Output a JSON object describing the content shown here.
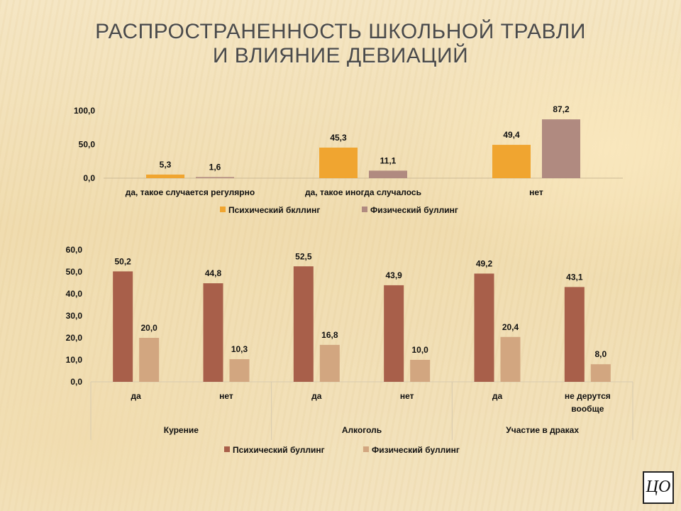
{
  "slide": {
    "title_line1": "Распространенность школьной травли",
    "title_line2": "и влияние девиаций",
    "logo_text": "ЦО"
  },
  "colors": {
    "psych_top": "#f0a530",
    "phys_top": "#b08a80",
    "psych_bottom": "#a85f4a",
    "phys_bottom": "#d2a680"
  },
  "chart_data": [
    {
      "type": "bar",
      "categories": [
        "да, такое случается регулярно",
        "да, такое иногда случалось",
        "нет"
      ],
      "series": [
        {
          "name": "Психический бкллинг",
          "values": [
            5.3,
            45.3,
            49.4
          ],
          "labels": [
            "5,3",
            "45,3",
            "49,4"
          ]
        },
        {
          "name": "Физический буллинг",
          "values": [
            1.6,
            11.1,
            87.2
          ],
          "labels": [
            "1,6",
            "11,1",
            "87,2"
          ]
        }
      ],
      "ylim": [
        0,
        100
      ],
      "yticks": [
        0,
        50,
        100
      ],
      "ytick_labels": [
        "0,0",
        "50,0",
        "100,0"
      ],
      "grid": false,
      "legend": "bottom"
    },
    {
      "type": "bar",
      "categories": [
        "да",
        "нет",
        "да",
        "нет",
        "да",
        "не дерутся вообще"
      ],
      "groups": [
        {
          "label": "Курение",
          "span": 2
        },
        {
          "label": "Алкоголь",
          "span": 2
        },
        {
          "label": "Участие в драках",
          "span": 2
        }
      ],
      "series": [
        {
          "name": "Психический буллинг",
          "values": [
            50.2,
            44.8,
            52.5,
            43.9,
            49.2,
            43.1
          ],
          "labels": [
            "50,2",
            "44,8",
            "52,5",
            "43,9",
            "49,2",
            "43,1"
          ]
        },
        {
          "name": "Физический буллинг",
          "values": [
            20.0,
            10.3,
            16.8,
            10.0,
            20.4,
            8.0
          ],
          "labels": [
            "20,0",
            "10,3",
            "16,8",
            "10,0",
            "20,4",
            "8,0"
          ]
        }
      ],
      "ylim": [
        0,
        60
      ],
      "yticks": [
        0,
        10,
        20,
        30,
        40,
        50,
        60
      ],
      "ytick_labels": [
        "0,0",
        "10,0",
        "20,0",
        "30,0",
        "40,0",
        "50,0",
        "60,0"
      ],
      "grid": false,
      "legend": "bottom"
    }
  ]
}
